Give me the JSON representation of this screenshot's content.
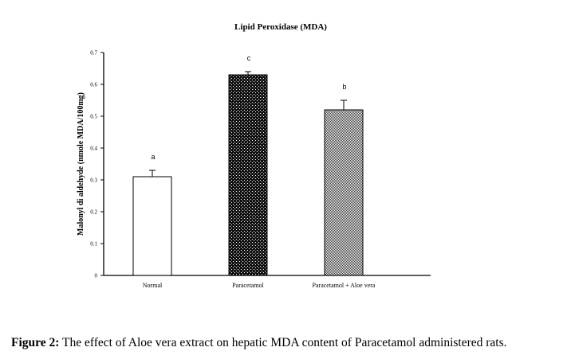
{
  "chart_data": {
    "type": "bar",
    "title": "Lipid  Peroxidase (MDA)",
    "xlabel": "",
    "ylabel": "Malonyl di aldehyde (nmole MDA/100mg)",
    "ylim": [
      0,
      0.7
    ],
    "yticks": [
      "0",
      "0.1",
      "0.2",
      "0.3",
      "0.4",
      "0.5",
      "0.6",
      "0.7"
    ],
    "categories": [
      "Normal",
      "Paracetamol",
      "Paracetamol + Aloe vera"
    ],
    "values": [
      0.31,
      0.63,
      0.52
    ],
    "errors": [
      0.02,
      0.01,
      0.03
    ],
    "significance_labels": [
      "a",
      "c",
      "b"
    ],
    "bar_fills": [
      "#ffffff",
      "dark-checker",
      "light-checker"
    ],
    "grid": false,
    "legend": "none"
  },
  "caption": {
    "label": "Figure 2:",
    "text": " The effect of Aloe vera extract on hepatic MDA content of Paracetamol administered rats."
  }
}
